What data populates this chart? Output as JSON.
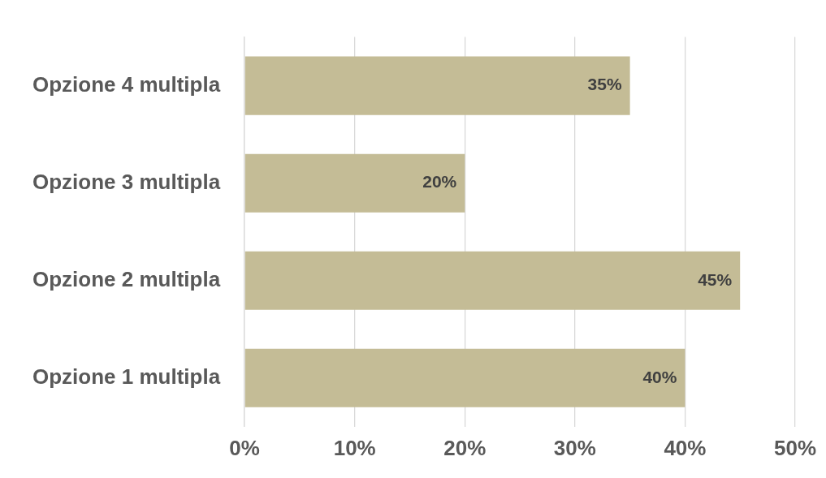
{
  "chart_data": {
    "type": "bar",
    "orientation": "horizontal",
    "categories": [
      "Opzione 4 multipla",
      "Opzione 3 multipla",
      "Opzione 2 multipla",
      "Opzione 1 multipla"
    ],
    "values": [
      35,
      20,
      45,
      40
    ],
    "color": "#c4bc96",
    "value_labels": [
      "35%",
      "20%",
      "45%",
      "40%"
    ],
    "xlim": [
      0,
      50
    ],
    "xticks": [
      {
        "value": 0,
        "label": "0%"
      },
      {
        "value": 10,
        "label": "10%"
      },
      {
        "value": 20,
        "label": "20%"
      },
      {
        "value": 30,
        "label": "30%"
      },
      {
        "value": 40,
        "label": "40%"
      },
      {
        "value": 50,
        "label": "50%"
      }
    ],
    "grid": "x",
    "legend": false
  }
}
